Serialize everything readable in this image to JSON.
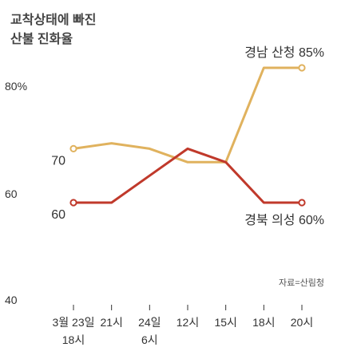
{
  "chart_data": {
    "type": "line",
    "title": "교착상태에 빠진",
    "subtitle": "산불 진화율",
    "source": "자료=산림청",
    "x": [
      "3월 23일 18시",
      "21시",
      "24일 6시",
      "12시",
      "15시",
      "18시",
      "20시"
    ],
    "x_ticks": [
      {
        "line1": "3월 23일",
        "line2": "18시"
      },
      {
        "line1": "21시",
        "line2": ""
      },
      {
        "line1": "24일",
        "line2": "6시"
      },
      {
        "line1": "12시",
        "line2": ""
      },
      {
        "line1": "15시",
        "line2": ""
      },
      {
        "line1": "18시",
        "line2": ""
      },
      {
        "line1": "20시",
        "line2": ""
      }
    ],
    "y_ticks": [
      "80%",
      "60",
      "40"
    ],
    "ylim": [
      40,
      88
    ],
    "series": [
      {
        "name": "경남 산청",
        "color": "#e0b25e",
        "values": [
          70,
          71,
          70,
          67.5,
          67.5,
          85,
          85
        ],
        "label": "경남 산청 85%"
      },
      {
        "name": "경북 의성",
        "color": "#c0392b",
        "values": [
          60,
          60,
          65,
          70,
          67.5,
          60,
          60
        ],
        "label": "경북 의성 60%"
      }
    ],
    "data_labels": [
      {
        "series": 0,
        "text": "70"
      },
      {
        "series": 1,
        "text": "60"
      }
    ]
  }
}
